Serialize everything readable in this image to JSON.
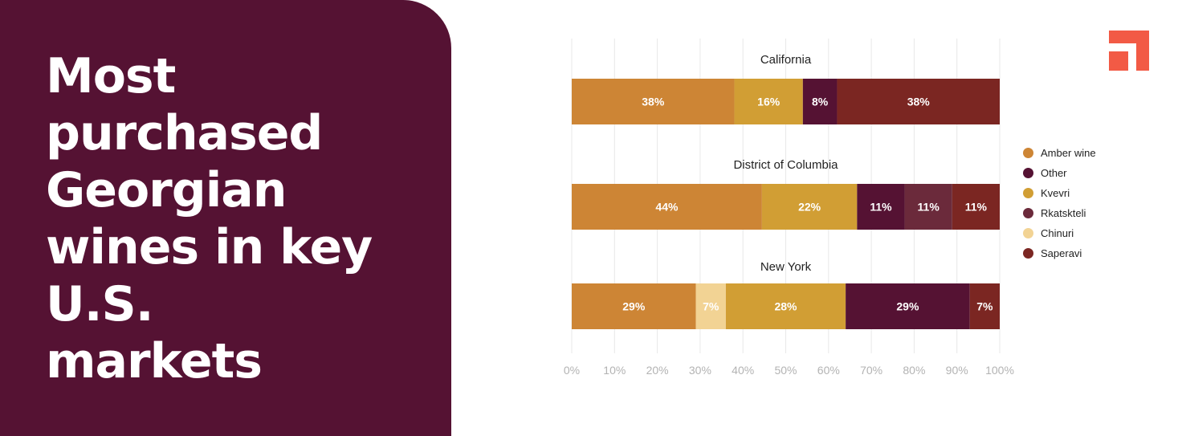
{
  "title": "Most purchased Georgian wines in key U.S. markets",
  "colors": {
    "panel_bg": "#551233",
    "logo": "#F25A45",
    "Amber wine": "#CD8535",
    "Kvevri": "#D19E34",
    "Other": "#551233",
    "Rkatskteli": "#6B2A3B",
    "Chinuri": "#F2D394",
    "Saperavi": "#7B2622",
    "grid": "#E8E8E8",
    "tick": "#B3B3B3"
  },
  "legend": [
    "Amber wine",
    "Other",
    "Kvevri",
    "Rkatskteli",
    "Chinuri",
    "Saperavi"
  ],
  "chart_data": {
    "type": "bar",
    "orientation": "horizontal",
    "stacked": true,
    "x_ticks": [
      "0%",
      "10%",
      "20%",
      "30%",
      "40%",
      "50%",
      "60%",
      "70%",
      "80%",
      "90%",
      "100%"
    ],
    "xlim": [
      0,
      100
    ],
    "grid": true,
    "legend_position": "right",
    "categories": [
      "California",
      "District of Columbia",
      "New York"
    ],
    "bars": [
      {
        "name": "California",
        "segments": [
          {
            "series": "Amber wine",
            "value": 38,
            "label": "38%"
          },
          {
            "series": "Kvevri",
            "value": 16,
            "label": "16%"
          },
          {
            "series": "Other",
            "value": 8,
            "label": "8%"
          },
          {
            "series": "Saperavi",
            "value": 38,
            "label": "38%"
          }
        ]
      },
      {
        "name": "District of Columbia",
        "segments": [
          {
            "series": "Amber wine",
            "value": 44,
            "label": "44%"
          },
          {
            "series": "Kvevri",
            "value": 22,
            "label": "22%"
          },
          {
            "series": "Other",
            "value": 11,
            "label": "11%"
          },
          {
            "series": "Rkatskteli",
            "value": 11,
            "label": "11%"
          },
          {
            "series": "Saperavi",
            "value": 11,
            "label": "11%"
          }
        ]
      },
      {
        "name": "New York",
        "segments": [
          {
            "series": "Amber wine",
            "value": 29,
            "label": "29%"
          },
          {
            "series": "Chinuri",
            "value": 7,
            "label": "7%"
          },
          {
            "series": "Kvevri",
            "value": 28,
            "label": "28%"
          },
          {
            "series": "Other",
            "value": 29,
            "label": "29%"
          },
          {
            "series": "Saperavi",
            "value": 7,
            "label": "7%"
          }
        ]
      }
    ]
  }
}
